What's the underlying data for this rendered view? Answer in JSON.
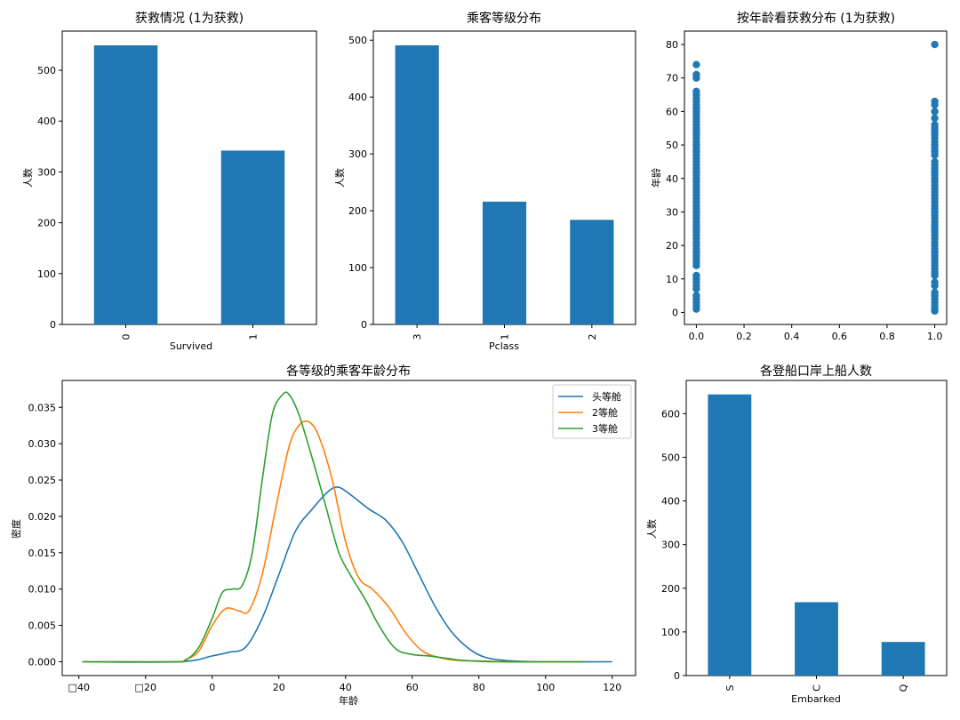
{
  "chart_data": [
    {
      "id": "survived",
      "type": "bar",
      "title": "获救情况 (1为获救)",
      "xlabel": "Survived",
      "ylabel": "人数",
      "categories": [
        "0",
        "1"
      ],
      "values": [
        549,
        342
      ],
      "ylim": [
        0,
        577
      ],
      "yticks": [
        0,
        100,
        200,
        300,
        400,
        500
      ],
      "color": "#1f77b4"
    },
    {
      "id": "pclass",
      "type": "bar",
      "title": "乘客等级分布",
      "xlabel": "Pclass",
      "ylabel": "人数",
      "categories": [
        "3",
        "1",
        "2"
      ],
      "values": [
        491,
        216,
        184
      ],
      "ylim": [
        0,
        516
      ],
      "yticks": [
        0,
        100,
        200,
        300,
        400,
        500
      ],
      "color": "#1f77b4"
    },
    {
      "id": "age_scatter",
      "type": "scatter",
      "title": "按年龄看获救分布 (1为获救)",
      "xlabel": "",
      "ylabel": "年龄",
      "xlim": [
        -0.05,
        1.05
      ],
      "ylim": [
        -3.6,
        84.0
      ],
      "xticks": [
        "0.0",
        "0.2",
        "0.4",
        "0.6",
        "0.8",
        "1.0"
      ],
      "yticks": [
        0,
        10,
        20,
        30,
        40,
        50,
        60,
        70,
        80
      ],
      "series": [
        {
          "x": 0,
          "ages": [
            1,
            2,
            3,
            4,
            5,
            7,
            8,
            9,
            10,
            11,
            14,
            15,
            16,
            17,
            18,
            19,
            20,
            21,
            22,
            23,
            24,
            25,
            26,
            27,
            28,
            29,
            30,
            31,
            32,
            33,
            34,
            35,
            36,
            37,
            38,
            39,
            40,
            41,
            42,
            43,
            44,
            45,
            46,
            47,
            48,
            49,
            50,
            51,
            52,
            53,
            54,
            55,
            56,
            57,
            58,
            59,
            60,
            61,
            62,
            63,
            64,
            65,
            66,
            70,
            71,
            74
          ]
        },
        {
          "x": 1,
          "ages": [
            0.42,
            1,
            2,
            3,
            4,
            5,
            6,
            8,
            9,
            11,
            12,
            13,
            14,
            15,
            16,
            17,
            18,
            19,
            20,
            21,
            22,
            23,
            24,
            25,
            26,
            27,
            28,
            29,
            30,
            31,
            32,
            33,
            34,
            35,
            36,
            37,
            38,
            39,
            40,
            41,
            42,
            43,
            44,
            45,
            47,
            48,
            49,
            50,
            51,
            52,
            53,
            54,
            55,
            56,
            58,
            60,
            62,
            63,
            80
          ]
        }
      ],
      "color": "#1f77b4"
    },
    {
      "id": "age_kde",
      "type": "line",
      "title": "各等级的乘客年龄分布",
      "xlabel": "年龄",
      "ylabel": "密度",
      "xlim": [
        -45,
        127
      ],
      "ylim": [
        -0.0019,
        0.0387
      ],
      "xticks": [
        -40,
        -20,
        0,
        20,
        40,
        60,
        80,
        100,
        120
      ],
      "xtick_labels": [
        "□40",
        "□20",
        "0",
        "20",
        "40",
        "60",
        "80",
        "100",
        "120"
      ],
      "yticks": [
        "0.000",
        "0.005",
        "0.010",
        "0.015",
        "0.020",
        "0.025",
        "0.030",
        "0.035"
      ],
      "legend": {
        "position": "top-right",
        "entries": [
          "头等舱",
          "2等舱",
          "3等舱"
        ]
      },
      "series": [
        {
          "name": "头等舱",
          "color": "#1f77b4",
          "x": [
            -39,
            -10,
            0,
            5,
            10,
            15,
            20,
            25,
            30,
            35,
            38,
            42,
            47,
            52,
            57,
            62,
            67,
            72,
            77,
            82,
            90,
            100,
            120
          ],
          "y": [
            0,
            0,
            0.0008,
            0.0013,
            0.002,
            0.006,
            0.012,
            0.018,
            0.021,
            0.0235,
            0.024,
            0.0228,
            0.021,
            0.0195,
            0.0165,
            0.012,
            0.0075,
            0.004,
            0.0018,
            0.0006,
            0.0001,
            0,
            0
          ]
        },
        {
          "name": "2等舱",
          "color": "#ff7f0e",
          "x": [
            -39,
            -12,
            -8,
            -4,
            0,
            4,
            8,
            11,
            15,
            19,
            23,
            26,
            29,
            32,
            36,
            40,
            44,
            48,
            53,
            58,
            63,
            68,
            73,
            80,
            90,
            110
          ],
          "y": [
            0,
            0,
            0.0003,
            0.0015,
            0.005,
            0.0073,
            0.007,
            0.007,
            0.012,
            0.021,
            0.0295,
            0.0325,
            0.033,
            0.031,
            0.025,
            0.0165,
            0.0115,
            0.01,
            0.0075,
            0.004,
            0.0015,
            0.0006,
            0.0002,
            0.0001,
            0,
            0
          ]
        },
        {
          "name": "3等舱",
          "color": "#2ca02c",
          "x": [
            -39,
            -12,
            -8,
            -4,
            0,
            3,
            6,
            9,
            12,
            15,
            18,
            21,
            23,
            26,
            30,
            34,
            38,
            42,
            46,
            50,
            55,
            60,
            65,
            70,
            75,
            85,
            100,
            112
          ],
          "y": [
            0,
            0,
            0.0002,
            0.002,
            0.006,
            0.0095,
            0.01,
            0.0105,
            0.015,
            0.025,
            0.034,
            0.0367,
            0.0368,
            0.034,
            0.028,
            0.0215,
            0.015,
            0.0115,
            0.0085,
            0.005,
            0.0018,
            0.001,
            0.0008,
            0.0005,
            0.0002,
            0,
            0,
            0
          ]
        }
      ]
    },
    {
      "id": "embarked",
      "type": "bar",
      "title": "各登船口岸上船人数",
      "xlabel": "Embarked",
      "ylabel": "人数",
      "categories": [
        "S",
        "C",
        "Q"
      ],
      "values": [
        644,
        168,
        77
      ],
      "ylim": [
        0,
        676
      ],
      "yticks": [
        0,
        100,
        200,
        300,
        400,
        500,
        600
      ],
      "color": "#1f77b4"
    }
  ]
}
